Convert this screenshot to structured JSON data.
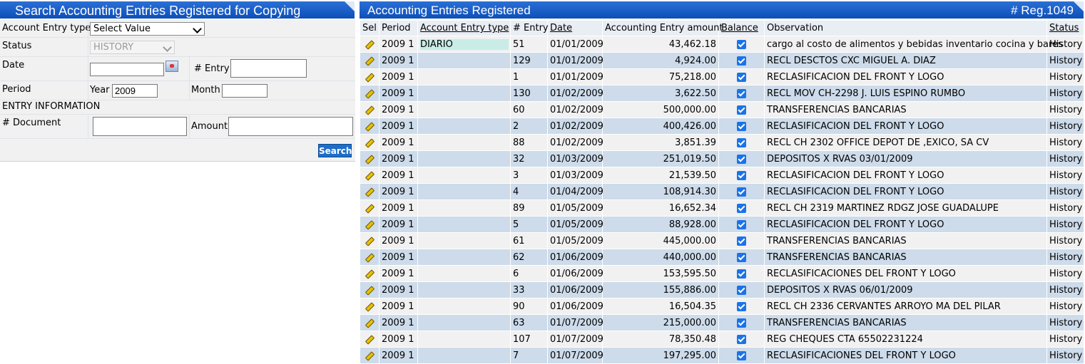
{
  "search_panel": {
    "title": "Search Accounting Entries Registered for Copying",
    "account_entry_type_label": "Account Entry type",
    "account_entry_type_value": "Select Value",
    "status_label": "Status",
    "status_value": "HISTORY",
    "date_label": "Date",
    "date_value": "",
    "entry_label": "# Entry",
    "entry_value": "",
    "period_label": "Period",
    "year_label": "Year",
    "year_value": "2009",
    "month_label": "Month",
    "month_value": "",
    "section_label": "ENTRY INFORMATION",
    "document_label": "# Document",
    "document_value": "",
    "amount_label": "Amount",
    "amount_value": "",
    "search_button": "Search"
  },
  "results_panel": {
    "title": "Accounting Entries Registered",
    "count": "# Reg.1049",
    "columns": [
      "Sel",
      "Period",
      "Account Entry type",
      "# Entry",
      "Date",
      "Accounting Entry amount",
      "Balance",
      "Observation",
      "Status"
    ],
    "rows": [
      {
        "period": "2009 1",
        "type": "DIARIO",
        "entry": "51",
        "date": "01/01/2009",
        "amount": "43,462.18",
        "balance": true,
        "observation": "cargo al costo de alimentos y bebidas inventario cocina y bares",
        "status": "History"
      },
      {
        "period": "2009 1",
        "type": "",
        "entry": "129",
        "date": "01/01/2009",
        "amount": "4,924.00",
        "balance": true,
        "observation": "RECL DESCTOS CXC MIGUEL A. DIAZ",
        "status": "History"
      },
      {
        "period": "2009 1",
        "type": "",
        "entry": "1",
        "date": "01/01/2009",
        "amount": "75,218.00",
        "balance": true,
        "observation": "RECLASIFICACION DEL FRONT Y LOGO",
        "status": "History"
      },
      {
        "period": "2009 1",
        "type": "",
        "entry": "130",
        "date": "01/02/2009",
        "amount": "3,622.50",
        "balance": true,
        "observation": "RECL MOV CH-2298 J. LUIS ESPINO RUMBO",
        "status": "History"
      },
      {
        "period": "2009 1",
        "type": "",
        "entry": "60",
        "date": "01/02/2009",
        "amount": "500,000.00",
        "balance": true,
        "observation": "TRANSFERENCIAS BANCARIAS",
        "status": "History"
      },
      {
        "period": "2009 1",
        "type": "",
        "entry": "2",
        "date": "01/02/2009",
        "amount": "400,426.00",
        "balance": true,
        "observation": "RECLASIFICACION DEL FRONT Y LOGO",
        "status": "History"
      },
      {
        "period": "2009 1",
        "type": "",
        "entry": "88",
        "date": "01/02/2009",
        "amount": "3,851.39",
        "balance": true,
        "observation": "RECL CH 2302 OFFICE DEPOT DE ,EXICO, SA CV",
        "status": "History"
      },
      {
        "period": "2009 1",
        "type": "",
        "entry": "32",
        "date": "01/03/2009",
        "amount": "251,019.50",
        "balance": true,
        "observation": "DEPOSITOS X RVAS 03/01/2009",
        "status": "History"
      },
      {
        "period": "2009 1",
        "type": "",
        "entry": "3",
        "date": "01/03/2009",
        "amount": "21,539.50",
        "balance": true,
        "observation": "RECLASIFICACION DEL FRONT Y LOGO",
        "status": "History"
      },
      {
        "period": "2009 1",
        "type": "",
        "entry": "4",
        "date": "01/04/2009",
        "amount": "108,914.30",
        "balance": true,
        "observation": "RECLASIFICACION DEL FRONT Y LOGO",
        "status": "History"
      },
      {
        "period": "2009 1",
        "type": "",
        "entry": "89",
        "date": "01/05/2009",
        "amount": "16,652.34",
        "balance": true,
        "observation": "RECL CH 2319 MARTINEZ RDGZ JOSE GUADALUPE",
        "status": "History"
      },
      {
        "period": "2009 1",
        "type": "",
        "entry": "5",
        "date": "01/05/2009",
        "amount": "88,928.00",
        "balance": true,
        "observation": "RECLASIFICACION DEL FRONT Y LOGO",
        "status": "History"
      },
      {
        "period": "2009 1",
        "type": "",
        "entry": "61",
        "date": "01/05/2009",
        "amount": "445,000.00",
        "balance": true,
        "observation": "TRANSFERENCIAS BANCARIAS",
        "status": "History"
      },
      {
        "period": "2009 1",
        "type": "",
        "entry": "62",
        "date": "01/06/2009",
        "amount": "440,000.00",
        "balance": true,
        "observation": "TRANSFERENCIAS BANCARIAS",
        "status": "History"
      },
      {
        "period": "2009 1",
        "type": "",
        "entry": "6",
        "date": "01/06/2009",
        "amount": "153,595.50",
        "balance": true,
        "observation": "RECLASIFICACIONES DEL FRONT Y LOGO",
        "status": "History"
      },
      {
        "period": "2009 1",
        "type": "",
        "entry": "33",
        "date": "01/06/2009",
        "amount": "155,886.00",
        "balance": true,
        "observation": "DEPOSITOS X RVAS 06/01/2009",
        "status": "History"
      },
      {
        "period": "2009 1",
        "type": "",
        "entry": "90",
        "date": "01/06/2009",
        "amount": "16,504.35",
        "balance": true,
        "observation": "RECL CH 2336 CERVANTES ARROYO MA DEL PILAR",
        "status": "History"
      },
      {
        "period": "2009 1",
        "type": "",
        "entry": "63",
        "date": "01/07/2009",
        "amount": "215,000.00",
        "balance": true,
        "observation": "TRANSFERENCIAS BANCARIAS",
        "status": "History"
      },
      {
        "period": "2009 1",
        "type": "",
        "entry": "107",
        "date": "01/07/2009",
        "amount": "78,350.48",
        "balance": true,
        "observation": "REG CHEQUES CTA 65502231224",
        "status": "History"
      },
      {
        "period": "2009 1",
        "type": "",
        "entry": "7",
        "date": "01/07/2009",
        "amount": "197,295.00",
        "balance": true,
        "observation": "RECLASIFICACIONES DEL FRONT Y LOGO",
        "status": "History"
      }
    ]
  },
  "icons": {
    "row_select": "pencil-icon",
    "balance": "checkbox-checked-icon",
    "date_picker": "calendar-icon"
  },
  "colors": {
    "header_blue": "#1556c0",
    "row_even": "#cddbea",
    "row_odd": "#f1f1f1",
    "search_button": "#1e6ec8",
    "checkbox": "#1a73e8"
  }
}
